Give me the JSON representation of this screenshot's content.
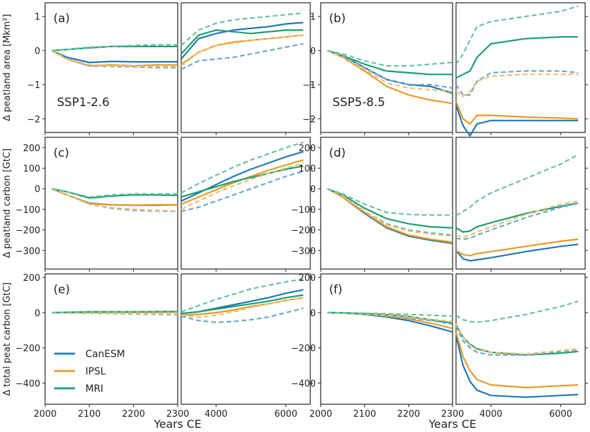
{
  "figure": {
    "xlabel": "Years CE",
    "colors": {
      "CanESM": "#1f77b4",
      "IPSL": "#e69a24",
      "MRI": "#1a9e6e"
    },
    "legend": [
      {
        "name": "CanESM",
        "color": "#1f77b4"
      },
      {
        "name": "IPSL",
        "color": "#e69a24"
      },
      {
        "name": "MRI",
        "color": "#1a9e6e"
      }
    ],
    "left_xticks": [
      "2000",
      "2100",
      "2200",
      "2300"
    ],
    "right_xticks": [
      "4000",
      "6000"
    ],
    "dashed_style": "lighter dashed line = second experiment variant (unlabeled)"
  },
  "chart_data": [
    {
      "type": "line",
      "panel": "(a)",
      "scenario": "SSP1-2.6",
      "ylabel": "Δ peatland area [Mkm²]",
      "ylim": [
        -2.4,
        1.4
      ],
      "yticks": [
        -2,
        -1,
        0,
        1
      ],
      "x_left": [
        2015,
        2050,
        2100,
        2150,
        2200,
        2250,
        2300
      ],
      "x_right": [
        3000,
        3500,
        4000,
        4500,
        5000,
        5500,
        6000,
        6500
      ],
      "series": [
        {
          "name": "CanESM",
          "style": "solid",
          "left": [
            0,
            -0.2,
            -0.35,
            -0.32,
            -0.33,
            -0.33,
            -0.33
          ],
          "right": [
            -0.25,
            0.35,
            0.5,
            0.6,
            0.65,
            0.7,
            0.78,
            0.82
          ]
        },
        {
          "name": "IPSL",
          "style": "solid",
          "left": [
            0,
            -0.25,
            -0.45,
            -0.42,
            -0.45,
            -0.42,
            -0.42
          ],
          "right": [
            -0.4,
            -0.05,
            0.15,
            0.25,
            0.3,
            0.35,
            0.4,
            0.45
          ]
        },
        {
          "name": "MRI",
          "style": "solid",
          "left": [
            0,
            0.03,
            0.08,
            0.12,
            0.12,
            0.12,
            0.12
          ],
          "right": [
            -0.1,
            0.45,
            0.6,
            0.55,
            0.5,
            0.55,
            0.6,
            0.6
          ]
        },
        {
          "name": "CanESM",
          "style": "dashed",
          "left": [
            0,
            -0.25,
            -0.45,
            -0.47,
            -0.48,
            -0.5,
            -0.5
          ],
          "right": [
            -0.55,
            -0.3,
            -0.25,
            -0.2,
            -0.1,
            0,
            0.1,
            0.2
          ]
        },
        {
          "name": "IPSL",
          "style": "dashed",
          "left": [
            0,
            -0.25,
            -0.42,
            -0.45,
            -0.46,
            -0.47,
            -0.47
          ],
          "right": [
            -0.45,
            -0.05,
            0.15,
            0.22,
            0.3,
            0.35,
            0.4,
            0.45
          ]
        },
        {
          "name": "MRI",
          "style": "dashed",
          "left": [
            0,
            0.03,
            0.1,
            0.12,
            0.15,
            0.17,
            0.17
          ],
          "right": [
            0.15,
            0.6,
            0.8,
            0.9,
            0.95,
            1.0,
            1.05,
            1.1
          ]
        }
      ]
    },
    {
      "type": "line",
      "panel": "(b)",
      "scenario": "SSP5-8.5",
      "ylabel": "",
      "ylim": [
        -2.4,
        1.4
      ],
      "yticks": [
        -2,
        -1,
        0,
        1
      ],
      "x_left": [
        2015,
        2050,
        2100,
        2150,
        2200,
        2250,
        2300
      ],
      "x_right": [
        3000,
        3200,
        3400,
        3600,
        4000,
        5000,
        6000,
        6500
      ],
      "series": [
        {
          "name": "CanESM",
          "style": "solid",
          "left": [
            0,
            -0.15,
            -0.5,
            -0.85,
            -1.0,
            -1.05,
            -1.25
          ],
          "right": [
            -1.6,
            -2.2,
            -2.5,
            -2.15,
            -2.05,
            -2.05,
            -2.05,
            -2.05
          ]
        },
        {
          "name": "IPSL",
          "style": "solid",
          "left": [
            0,
            -0.2,
            -0.6,
            -1.05,
            -1.3,
            -1.45,
            -1.55
          ],
          "right": [
            -1.5,
            -2.0,
            -2.15,
            -1.9,
            -1.9,
            -1.95,
            -1.98,
            -2.0
          ]
        },
        {
          "name": "MRI",
          "style": "solid",
          "left": [
            0,
            -0.15,
            -0.4,
            -0.6,
            -0.65,
            -0.7,
            -0.7
          ],
          "right": [
            -0.8,
            -0.7,
            -0.6,
            -0.2,
            0.2,
            0.35,
            0.4,
            0.4
          ]
        },
        {
          "name": "CanESM",
          "style": "dashed",
          "left": [
            0,
            -0.15,
            -0.5,
            -0.85,
            -1.0,
            -1.0,
            -1.1
          ],
          "right": [
            -1.0,
            -1.3,
            -1.3,
            -0.9,
            -0.65,
            -0.6,
            -0.6,
            -0.65
          ]
        },
        {
          "name": "IPSL",
          "style": "dashed",
          "left": [
            0,
            -0.2,
            -0.55,
            -0.95,
            -1.1,
            -1.15,
            -1.2
          ],
          "right": [
            -1.2,
            -1.35,
            -1.2,
            -0.9,
            -0.75,
            -0.7,
            -0.7,
            -0.7
          ]
        },
        {
          "name": "MRI",
          "style": "dashed",
          "left": [
            0,
            -0.1,
            -0.3,
            -0.45,
            -0.45,
            -0.4,
            -0.35
          ],
          "right": [
            -0.4,
            -0.1,
            0.3,
            0.7,
            0.85,
            1.0,
            1.15,
            1.3
          ]
        }
      ]
    },
    {
      "type": "line",
      "panel": "(c)",
      "ylabel": "Δ peatland carbon [GtC]",
      "ylim": [
        -390,
        250
      ],
      "yticks": [
        -300,
        -200,
        -100,
        0,
        100,
        200
      ],
      "x_left": [
        2015,
        2050,
        2100,
        2150,
        2200,
        2250,
        2300
      ],
      "x_right": [
        3000,
        3500,
        4000,
        4500,
        5000,
        5500,
        6000,
        6500
      ],
      "series": [
        {
          "name": "CanESM",
          "style": "solid",
          "left": [
            0,
            -30,
            -70,
            -78,
            -80,
            -80,
            -78
          ],
          "right": [
            -60,
            -20,
            20,
            60,
            95,
            125,
            155,
            180
          ]
        },
        {
          "name": "IPSL",
          "style": "solid",
          "left": [
            0,
            -30,
            -72,
            -78,
            -80,
            -78,
            -78
          ],
          "right": [
            -75,
            -40,
            -5,
            30,
            60,
            90,
            115,
            140
          ]
        },
        {
          "name": "MRI",
          "style": "solid",
          "left": [
            0,
            -15,
            -45,
            -35,
            -30,
            -30,
            -32
          ],
          "right": [
            -40,
            -15,
            10,
            35,
            55,
            75,
            95,
            110
          ]
        },
        {
          "name": "CanESM",
          "style": "dashed",
          "left": [
            0,
            -30,
            -75,
            -95,
            -105,
            -108,
            -110
          ],
          "right": [
            -110,
            -90,
            -60,
            -30,
            0,
            30,
            60,
            85
          ]
        },
        {
          "name": "IPSL",
          "style": "dashed",
          "left": [
            0,
            -30,
            -75,
            -92,
            -100,
            -105,
            -108
          ],
          "right": [
            -100,
            -60,
            -20,
            15,
            45,
            75,
            100,
            125
          ]
        },
        {
          "name": "MRI",
          "style": "dashed",
          "left": [
            0,
            -15,
            -40,
            -30,
            -25,
            -25,
            -25
          ],
          "right": [
            -20,
            25,
            65,
            105,
            140,
            170,
            200,
            225
          ]
        }
      ]
    },
    {
      "type": "line",
      "panel": "(d)",
      "ylabel": "",
      "ylim": [
        -390,
        250
      ],
      "yticks": [
        -300,
        -200,
        -100,
        0,
        100,
        200
      ],
      "x_left": [
        2015,
        2050,
        2100,
        2150,
        2200,
        2250,
        2300
      ],
      "x_right": [
        3000,
        3200,
        3400,
        3600,
        4000,
        5000,
        6000,
        6500
      ],
      "series": [
        {
          "name": "CanESM",
          "style": "solid",
          "left": [
            0,
            -40,
            -120,
            -190,
            -230,
            -250,
            -265
          ],
          "right": [
            -300,
            -340,
            -350,
            -345,
            -335,
            -305,
            -280,
            -270
          ]
        },
        {
          "name": "IPSL",
          "style": "solid",
          "left": [
            0,
            -40,
            -115,
            -185,
            -225,
            -245,
            -260
          ],
          "right": [
            -300,
            -320,
            -325,
            -315,
            -305,
            -280,
            -255,
            -245
          ]
        },
        {
          "name": "MRI",
          "style": "solid",
          "left": [
            0,
            -30,
            -95,
            -145,
            -170,
            -185,
            -190
          ],
          "right": [
            -190,
            -210,
            -205,
            -185,
            -165,
            -120,
            -85,
            -70
          ]
        },
        {
          "name": "CanESM",
          "style": "dashed",
          "left": [
            0,
            -35,
            -110,
            -170,
            -200,
            -215,
            -225
          ],
          "right": [
            -240,
            -245,
            -240,
            -225,
            -200,
            -140,
            -90,
            -70
          ]
        },
        {
          "name": "IPSL",
          "style": "dashed",
          "left": [
            0,
            -35,
            -110,
            -175,
            -205,
            -220,
            -230
          ],
          "right": [
            -225,
            -235,
            -225,
            -210,
            -185,
            -125,
            -75,
            -60
          ]
        },
        {
          "name": "MRI",
          "style": "dashed",
          "left": [
            0,
            -25,
            -75,
            -115,
            -125,
            -128,
            -128
          ],
          "right": [
            -130,
            -110,
            -90,
            -60,
            -20,
            50,
            120,
            165
          ]
        }
      ]
    },
    {
      "type": "line",
      "panel": "(e)",
      "ylabel": "Δ total peat carbon [GtC]",
      "ylim": [
        -520,
        220
      ],
      "yticks": [
        -400,
        -200,
        0,
        200
      ],
      "x_left": [
        2015,
        2050,
        2100,
        2150,
        2200,
        2250,
        2300
      ],
      "x_right": [
        3000,
        3500,
        4000,
        4500,
        5000,
        5500,
        6000,
        6500
      ],
      "series": [
        {
          "name": "CanESM",
          "style": "solid",
          "left": [
            0,
            0,
            2,
            3,
            4,
            5,
            5
          ],
          "right": [
            -5,
            5,
            25,
            45,
            65,
            85,
            110,
            130
          ]
        },
        {
          "name": "IPSL",
          "style": "solid",
          "left": [
            0,
            0,
            1,
            1,
            2,
            2,
            3
          ],
          "right": [
            -15,
            -10,
            0,
            15,
            35,
            50,
            70,
            85
          ]
        },
        {
          "name": "MRI",
          "style": "solid",
          "left": [
            0,
            2,
            5,
            5,
            5,
            6,
            7
          ],
          "right": [
            -5,
            5,
            20,
            35,
            50,
            65,
            85,
            100
          ]
        },
        {
          "name": "CanESM",
          "style": "dashed",
          "left": [
            0,
            -1,
            -3,
            -5,
            -8,
            -10,
            -12
          ],
          "right": [
            -20,
            -45,
            -55,
            -50,
            -40,
            -25,
            0,
            25
          ]
        },
        {
          "name": "IPSL",
          "style": "dashed",
          "left": [
            0,
            -1,
            -2,
            -4,
            -6,
            -7,
            -8
          ],
          "right": [
            -15,
            -25,
            -15,
            5,
            30,
            50,
            70,
            85
          ]
        },
        {
          "name": "MRI",
          "style": "dashed",
          "left": [
            0,
            1,
            3,
            3,
            4,
            4,
            5
          ],
          "right": [
            5,
            40,
            75,
            105,
            135,
            155,
            175,
            190
          ]
        }
      ]
    },
    {
      "type": "line",
      "panel": "(f)",
      "ylabel": "",
      "ylim": [
        -520,
        220
      ],
      "yticks": [
        -400,
        -200,
        0,
        200
      ],
      "x_left": [
        2015,
        2050,
        2100,
        2150,
        2200,
        2250,
        2300
      ],
      "x_right": [
        3000,
        3200,
        3400,
        3600,
        4000,
        5000,
        6000,
        6500
      ],
      "series": [
        {
          "name": "CanESM",
          "style": "solid",
          "left": [
            0,
            -2,
            -10,
            -25,
            -45,
            -75,
            -110
          ],
          "right": [
            -130,
            -300,
            -390,
            -440,
            -470,
            -480,
            -470,
            -465
          ]
        },
        {
          "name": "IPSL",
          "style": "solid",
          "left": [
            0,
            -2,
            -8,
            -20,
            -35,
            -60,
            -90
          ],
          "right": [
            -110,
            -250,
            -330,
            -380,
            -410,
            -425,
            -415,
            -410
          ]
        },
        {
          "name": "MRI",
          "style": "solid",
          "left": [
            0,
            -1,
            -5,
            -12,
            -22,
            -40,
            -60
          ],
          "right": [
            -70,
            -140,
            -180,
            -205,
            -225,
            -240,
            -230,
            -220
          ]
        },
        {
          "name": "CanESM",
          "style": "dashed",
          "left": [
            0,
            -2,
            -8,
            -18,
            -30,
            -45,
            -65
          ],
          "right": [
            -75,
            -160,
            -200,
            -225,
            -240,
            -240,
            -220,
            -210
          ]
        },
        {
          "name": "IPSL",
          "style": "dashed",
          "left": [
            0,
            -2,
            -6,
            -14,
            -24,
            -38,
            -50
          ],
          "right": [
            -60,
            -140,
            -185,
            -210,
            -225,
            -235,
            -215,
            -205
          ]
        },
        {
          "name": "MRI",
          "style": "dashed",
          "left": [
            0,
            -1,
            -3,
            -6,
            -10,
            -15,
            -20
          ],
          "right": [
            -15,
            -40,
            -50,
            -55,
            -45,
            -10,
            35,
            65
          ]
        }
      ]
    }
  ]
}
